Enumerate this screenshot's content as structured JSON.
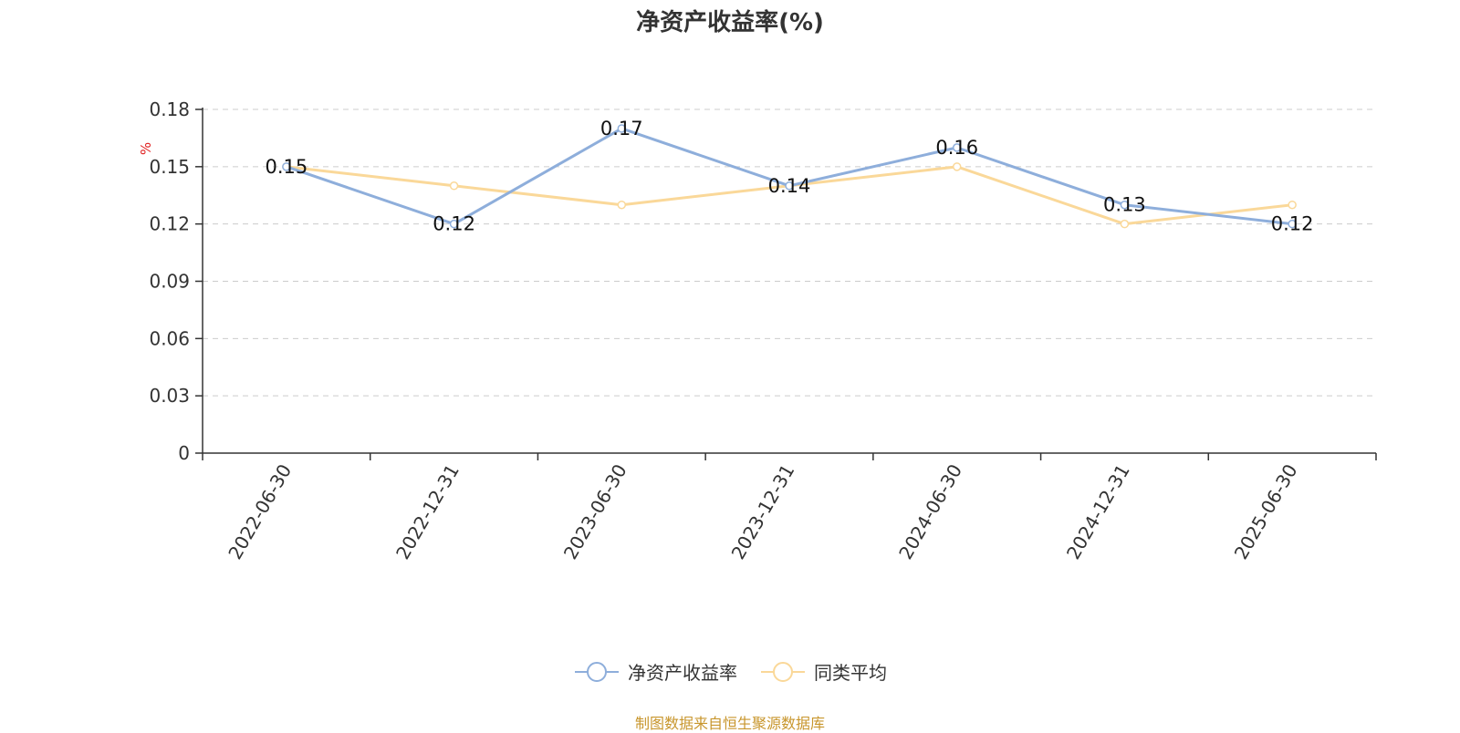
{
  "title": "净资产收益率(%)",
  "source": "制图数据来自恒生聚源数据库",
  "chart_data": {
    "type": "line",
    "title": "净资产收益率(%)",
    "ylabel": "%",
    "categories": [
      "2022-06-30",
      "2022-12-31",
      "2023-06-30",
      "2023-12-31",
      "2024-06-30",
      "2024-12-31",
      "2025-06-30"
    ],
    "ylim": [
      0,
      0.18
    ],
    "yticks": [
      "0",
      "0.03",
      "0.06",
      "0.09",
      "0.12",
      "0.15",
      "0.18"
    ],
    "grid": true,
    "legend_position": "bottom",
    "series": [
      {
        "name": "净资产收益率",
        "color": "#8eaedb",
        "values": [
          0.15,
          0.12,
          0.17,
          0.14,
          0.16,
          0.13,
          0.12
        ],
        "labels": [
          "0.15",
          "0.12",
          "0.17",
          "0.14",
          "0.16",
          "0.13",
          "0.12"
        ]
      },
      {
        "name": "同类平均",
        "color": "#fad899",
        "values": [
          0.15,
          0.14,
          0.13,
          0.14,
          0.15,
          0.12,
          0.13
        ]
      }
    ]
  }
}
